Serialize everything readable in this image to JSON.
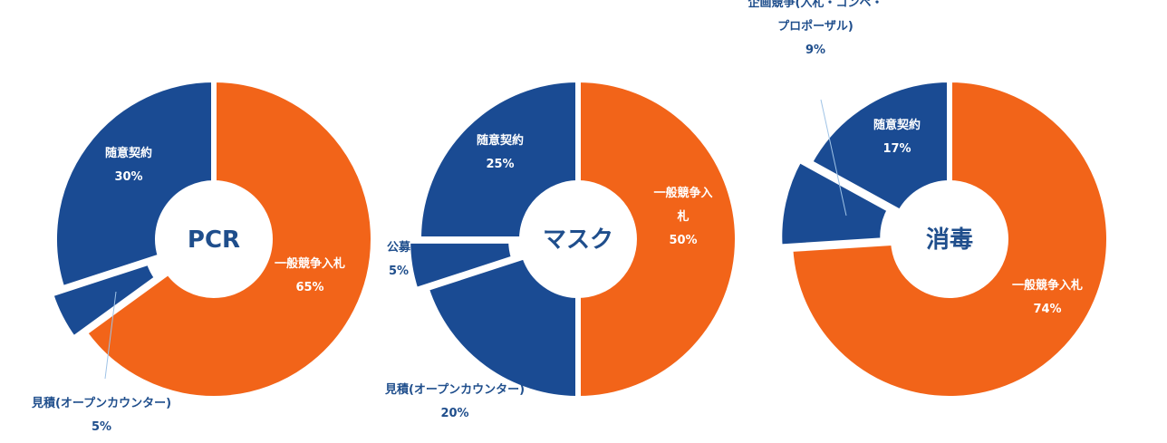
{
  "chart_data": [
    {
      "type": "pie",
      "title": "PCR",
      "slices": [
        {
          "name": "一般競争入札",
          "label_lines": [
            "一般競争入札",
            "65%"
          ],
          "value": 65,
          "color": "#f26419",
          "label_pos": "inside"
        },
        {
          "name": "見積(オープンカウンター)",
          "label_lines": [
            "見積(オープンカウンター)",
            "5%"
          ],
          "value": 5,
          "color": "#1a4b93",
          "label_pos": "outside"
        },
        {
          "name": "随意契約",
          "label_lines": [
            "随意契約",
            "30%"
          ],
          "value": 30,
          "color": "#1a4b93",
          "label_pos": "inside"
        }
      ]
    },
    {
      "type": "pie",
      "title": "マスク",
      "slices": [
        {
          "name": "一般競争入札",
          "label_lines": [
            "一般競争入",
            "札",
            "50%"
          ],
          "value": 50,
          "color": "#f26419",
          "label_pos": "inside"
        },
        {
          "name": "見積(オープンカウンター)",
          "label_lines": [
            "見積(オープンカウンター)",
            "20%"
          ],
          "value": 20,
          "color": "#1a4b93",
          "label_pos": "outside"
        },
        {
          "name": "公募",
          "label_lines": [
            "公募",
            "5%"
          ],
          "value": 5,
          "color": "#1a4b93",
          "label_pos": "outside"
        },
        {
          "name": "随意契約",
          "label_lines": [
            "随意契約",
            "25%"
          ],
          "value": 25,
          "color": "#1a4b93",
          "label_pos": "inside"
        }
      ]
    },
    {
      "type": "pie",
      "title": "消毒",
      "slices": [
        {
          "name": "一般競争入札",
          "label_lines": [
            "一般競争入札",
            "74%"
          ],
          "value": 74,
          "color": "#f26419",
          "label_pos": "inside"
        },
        {
          "name": "企画競争(入札・コンペ・プロポーザル)",
          "label_lines": [
            "企画競争(入札・コンペ・",
            "プロポーザル)",
            "9%"
          ],
          "value": 9,
          "color": "#1a4b93",
          "label_pos": "outside"
        },
        {
          "name": "随意契約",
          "label_lines": [
            "随意契約",
            "17%"
          ],
          "value": 17,
          "color": "#1a4b93",
          "label_pos": "inside"
        }
      ]
    }
  ],
  "colors": {
    "orange": "#f26419",
    "blue": "#1a4b93",
    "title_text": "#1f4e8c",
    "label_text_outside": "#1f4e8c",
    "separator": "#ffffff"
  }
}
